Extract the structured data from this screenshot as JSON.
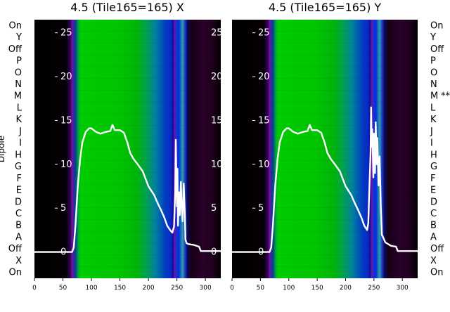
{
  "chart_data": [
    {
      "type": "heatmap",
      "title": "4.5 (Tile165=165) X",
      "ylabel": "Dipole",
      "xticks": [
        0,
        50,
        100,
        150,
        200,
        250,
        300
      ],
      "xlim": [
        0,
        327
      ],
      "dipole_labels": [
        "On",
        "Y",
        "Off",
        "P",
        "O",
        "N",
        "M",
        "L",
        "K",
        "J",
        "I",
        "H",
        "G",
        "F",
        "E",
        "D",
        "C",
        "B",
        "A",
        "Off",
        "X",
        "On"
      ],
      "flagged_labels": [],
      "overlay_yticks": [
        0,
        5,
        10,
        15,
        20,
        25
      ],
      "overlay_ylim": [
        -3,
        26.5
      ],
      "overlay_curve": {
        "x": [
          0,
          66,
          69,
          72,
          76,
          80,
          84,
          90,
          96,
          100,
          108,
          116,
          125,
          133,
          137,
          141,
          150,
          157,
          163,
          168,
          174,
          180,
          190,
          200,
          205,
          210,
          216,
          222,
          228,
          233,
          238,
          242,
          245,
          247,
          248,
          250,
          251,
          252,
          254,
          255,
          257,
          258,
          260,
          262,
          264,
          265,
          267,
          270,
          280,
          289,
          292,
          327
        ],
        "y": [
          0,
          0,
          0.5,
          3,
          7.5,
          10.5,
          12.5,
          13.7,
          14.1,
          14.1,
          13.7,
          13.5,
          13.7,
          13.8,
          14.5,
          13.9,
          13.9,
          13.6,
          12.5,
          11.3,
          10.6,
          10.1,
          9.2,
          7.5,
          7.0,
          6.5,
          5.6,
          4.8,
          3.9,
          3.0,
          2.5,
          2.2,
          2.9,
          7.0,
          12.8,
          5.2,
          9.5,
          3.0,
          6.8,
          4.2,
          8.0,
          5.6,
          3.5,
          7.8,
          4.3,
          1.4,
          1.0,
          0.9,
          0.8,
          0.6,
          0.1,
          0.1
        ]
      }
    },
    {
      "type": "heatmap",
      "title": "4.5 (Tile165=165) Y",
      "ylabel": "",
      "xticks": [
        0,
        50,
        100,
        150,
        200,
        250,
        300
      ],
      "xlim": [
        0,
        327
      ],
      "dipole_labels": [
        "On",
        "Y",
        "Off",
        "P",
        "O",
        "N",
        "M",
        "L",
        "K",
        "J",
        "I",
        "H",
        "G",
        "F",
        "E",
        "D",
        "C",
        "B",
        "A",
        "Off",
        "X",
        "On"
      ],
      "flagged_labels": [
        "**"
      ],
      "overlay_yticks": [
        0,
        5,
        10,
        15,
        20,
        25
      ],
      "overlay_ylim": [
        -3,
        26.5
      ],
      "overlay_curve": {
        "x": [
          0,
          66,
          69,
          72,
          76,
          80,
          84,
          90,
          96,
          100,
          108,
          116,
          125,
          133,
          137,
          141,
          150,
          157,
          163,
          168,
          174,
          180,
          190,
          200,
          205,
          210,
          216,
          222,
          228,
          233,
          238,
          240,
          242,
          244,
          245,
          246,
          247,
          249,
          250,
          252,
          253,
          255,
          256,
          258,
          260,
          262,
          264,
          270,
          280,
          289,
          292,
          327
        ],
        "y": [
          0,
          0,
          0.5,
          3,
          7.5,
          10.5,
          12.5,
          13.7,
          14.1,
          14.1,
          13.7,
          13.5,
          13.7,
          13.8,
          14.5,
          13.9,
          13.9,
          13.6,
          12.5,
          11.3,
          10.6,
          10.1,
          9.2,
          7.5,
          7.0,
          6.5,
          5.6,
          4.8,
          3.9,
          3.0,
          2.5,
          3.3,
          7.5,
          11.3,
          16.5,
          12.0,
          14.0,
          8.5,
          13.5,
          9.0,
          14.8,
          10.0,
          13.0,
          7.6,
          10.9,
          5.4,
          2.0,
          1.1,
          0.7,
          0.6,
          0.1,
          0.1
        ]
      }
    }
  ]
}
